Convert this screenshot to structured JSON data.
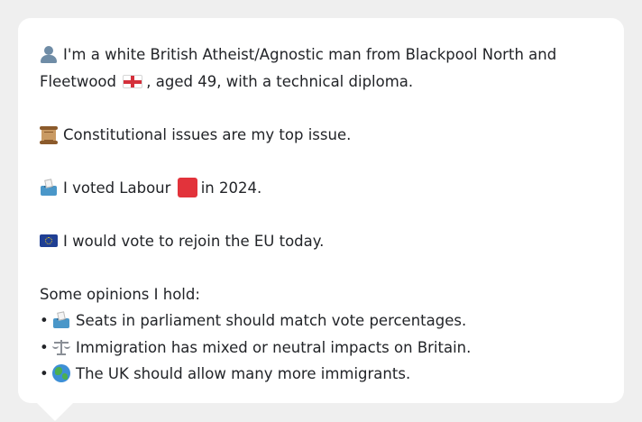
{
  "profile_card": {
    "identity": {
      "icon": "person-silhouette-icon",
      "line1": "I'm a white British Atheist/Agnostic man from Blackpool North and",
      "line2_pre": "Fleetwood",
      "flag_icon": "england-flag-icon",
      "line2_post": ", aged 49, with a technical diploma."
    },
    "top_issue": {
      "icon": "scroll-icon",
      "text": "Constitutional issues are my top issue."
    },
    "vote": {
      "icon": "ballot-box-icon",
      "text_pre": "I voted Labour",
      "party_color_icon": "red-square-icon",
      "party_color": "#e2333b",
      "text_post": "in 2024."
    },
    "eu": {
      "icon": "eu-flag-icon",
      "text": "I would vote to rejoin the EU today."
    },
    "opinions": {
      "heading": "Some opinions I hold:",
      "bullet": "•",
      "items": [
        {
          "icon": "ballot-box-icon",
          "text": "Seats in parliament should match vote percentages."
        },
        {
          "icon": "balance-scale-icon",
          "text": "Immigration has mixed or neutral impacts on Britain."
        },
        {
          "icon": "globe-icon",
          "text": "The UK should allow many more immigrants."
        }
      ]
    }
  }
}
